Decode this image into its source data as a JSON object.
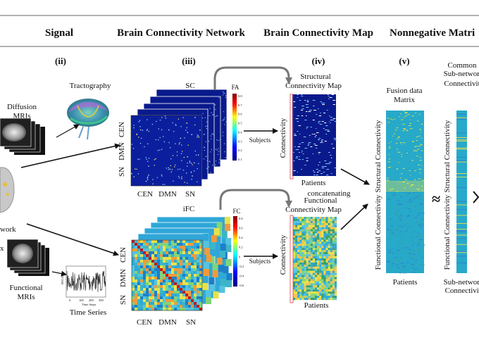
{
  "headers": {
    "signal": "Signal",
    "network": "Brain Connectivity Network",
    "map": "Brain Connectivity Map",
    "nmf": "Nonnegative Matri"
  },
  "steps": {
    "ii": "(ii)",
    "iii": "(iii)",
    "iv": "(iv)",
    "v": "(v)"
  },
  "signal": {
    "tractography": "Tractography",
    "diffusion_line1": "Diffusion",
    "diffusion_line2": "MRIs",
    "functional_line1": "Functional",
    "functional_line2": "MRIs",
    "time_series": "Time Series",
    "network_fragment": "work",
    "x_fragment": "x",
    "ts_xlabel": "Time Steps",
    "ts_ylabel": "BOLD",
    "ts_ticks": [
      "0",
      "100",
      "200",
      "300"
    ]
  },
  "sc_panel": {
    "title": "SC",
    "colorbar_label": "FA",
    "colorbar_ticks": [
      "0.8",
      "0.7",
      "0.6",
      "0.5",
      "0.4",
      "0.3",
      "0.2",
      "0.1"
    ],
    "row_labels": [
      "CEN",
      "DMN",
      "SN"
    ],
    "col_labels": [
      "CEN",
      "DMN",
      "SN"
    ]
  },
  "fc_panel": {
    "title": "iFC",
    "colorbar_label": "FC",
    "colorbar_ticks": [
      "0.8",
      "0.6",
      "0.4",
      "0.2",
      "0",
      "-0.2",
      "-0.4",
      "-0.6"
    ],
    "row_labels": [
      "CEN",
      "DMN",
      "SN"
    ],
    "col_labels": [
      "CEN",
      "DMN",
      "SN"
    ]
  },
  "arrows": {
    "subjects_top": "Subjects",
    "subjects_bottom": "Subjects",
    "concatenating": "concatenating"
  },
  "structural_map": {
    "title_line1": "Structural",
    "title_line2": "Connectivity Map",
    "y_label": "Connectivity",
    "x_label": "Patients"
  },
  "functional_map": {
    "title_line1": "Functional",
    "title_line2": "Connectivity Map",
    "y_label": "Connectivity",
    "x_label": "Patients"
  },
  "fusion": {
    "title_line1": "Fusion data",
    "title_line2": "Matrix",
    "y_label_top": "Structural Connectivity",
    "y_label_bottom": "Functional Connectivity",
    "x_label": "Patients",
    "approx": "≈"
  },
  "common": {
    "title_line1": "Common",
    "title_line2": "Sub-network",
    "title_line3": "Connectivit",
    "y_label_top": "Structural Connectivity",
    "y_label_bottom": "Functional Connectivity",
    "bottom_line1": "Sub-network",
    "bottom_line2": "Connectivity"
  },
  "colors": {
    "arrow": "#111111",
    "curve_arrow": "#777777",
    "sc_bg": "#0a1a8c",
    "fc_bg": "#2fa7d8",
    "fusion_bg": "#27a9c9",
    "highlight": "#e04040"
  }
}
